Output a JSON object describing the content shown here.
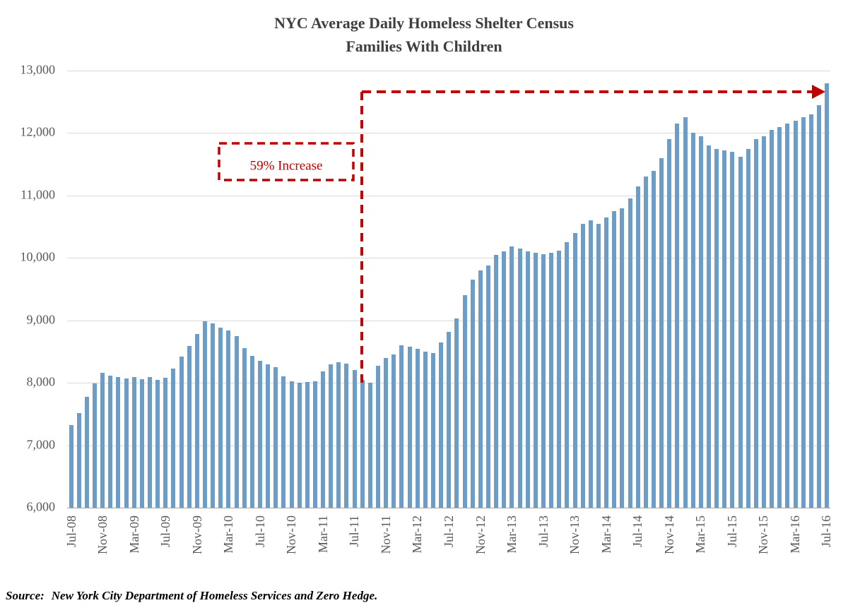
{
  "title": {
    "line1": "NYC Average Daily Homeless Shelter Census",
    "line2": "Families With Children"
  },
  "annotation": {
    "label": "59% Increase"
  },
  "source": {
    "label": "Source:",
    "text": "New York City Department of Homeless Services and Zero Hedge."
  },
  "colors": {
    "bar": "#6C9DC6",
    "grid": "#D9D9D9",
    "axis_line": "#A6A6A6",
    "axis_text": "#595959",
    "title_text": "#3F3F3F",
    "annotation_red": "#C00000"
  },
  "chart_data": {
    "type": "bar",
    "title": "NYC Average Daily Homeless Shelter Census",
    "subtitle": "Families With Children",
    "xlabel": "",
    "ylabel": "",
    "grid": true,
    "legend": false,
    "ylim": [
      6000,
      13000
    ],
    "y_tick_step": 1000,
    "y_tick_labels": [
      "6,000",
      "7,000",
      "8,000",
      "9,000",
      "10,000",
      "11,000",
      "12,000",
      "13,000"
    ],
    "x_tick_every": 4,
    "x": [
      "Jul-08",
      "Aug-08",
      "Sep-08",
      "Oct-08",
      "Nov-08",
      "Dec-08",
      "Jan-09",
      "Feb-09",
      "Mar-09",
      "Apr-09",
      "May-09",
      "Jun-09",
      "Jul-09",
      "Aug-09",
      "Sep-09",
      "Oct-09",
      "Nov-09",
      "Dec-09",
      "Jan-10",
      "Feb-10",
      "Mar-10",
      "Apr-10",
      "May-10",
      "Jun-10",
      "Jul-10",
      "Aug-10",
      "Sep-10",
      "Oct-10",
      "Nov-10",
      "Dec-10",
      "Jan-11",
      "Feb-11",
      "Mar-11",
      "Apr-11",
      "May-11",
      "Jun-11",
      "Jul-11",
      "Aug-11",
      "Sep-11",
      "Oct-11",
      "Nov-11",
      "Dec-11",
      "Jan-12",
      "Feb-12",
      "Mar-12",
      "Apr-12",
      "May-12",
      "Jun-12",
      "Jul-12",
      "Aug-12",
      "Sep-12",
      "Oct-12",
      "Nov-12",
      "Dec-12",
      "Jan-13",
      "Feb-13",
      "Mar-13",
      "Apr-13",
      "May-13",
      "Jun-13",
      "Jul-13",
      "Aug-13",
      "Sep-13",
      "Oct-13",
      "Nov-13",
      "Dec-13",
      "Jan-14",
      "Feb-14",
      "Mar-14",
      "Apr-14",
      "May-14",
      "Jun-14",
      "Jul-14",
      "Aug-14",
      "Sep-14",
      "Oct-14",
      "Nov-14",
      "Dec-14",
      "Jan-15",
      "Feb-15",
      "Mar-15",
      "Apr-15",
      "May-15",
      "Jun-15",
      "Jul-15",
      "Aug-15",
      "Sep-15",
      "Oct-15",
      "Nov-15",
      "Dec-15",
      "Jan-16",
      "Feb-16",
      "Mar-16",
      "Apr-16",
      "May-16",
      "Jun-16",
      "Jul-16"
    ],
    "values": [
      7320,
      7510,
      7780,
      7990,
      8160,
      8120,
      8090,
      8070,
      8090,
      8060,
      8090,
      8050,
      8080,
      8230,
      8420,
      8590,
      8780,
      8990,
      8950,
      8880,
      8840,
      8750,
      8560,
      8430,
      8350,
      8300,
      8250,
      8100,
      8020,
      8000,
      8010,
      8030,
      8180,
      8300,
      8330,
      8310,
      8200,
      8050,
      8000,
      8270,
      8400,
      8450,
      8600,
      8580,
      8550,
      8500,
      8480,
      8650,
      8820,
      9030,
      9400,
      9650,
      9800,
      9880,
      10050,
      10100,
      10180,
      10150,
      10100,
      10080,
      10060,
      10080,
      10120,
      10250,
      10400,
      10550,
      10600,
      10550,
      10650,
      10750,
      10800,
      10950,
      11150,
      11300,
      11400,
      11600,
      11900,
      12150,
      12250,
      12000,
      11950,
      11800,
      11750,
      11720,
      11700,
      11620,
      11750,
      11900,
      11950,
      12050,
      12100,
      12150,
      12200,
      12250,
      12300,
      12450,
      12800
    ]
  }
}
